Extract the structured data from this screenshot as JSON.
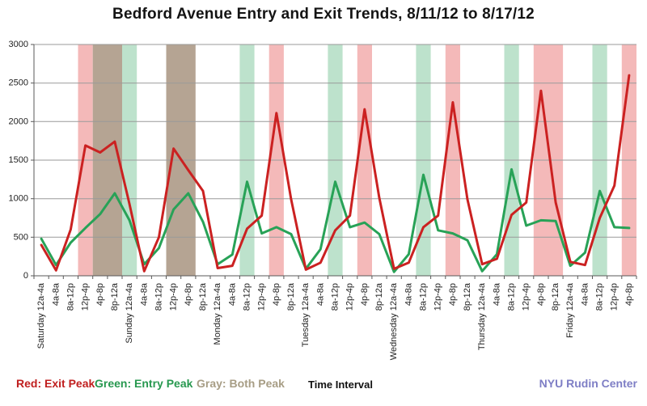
{
  "chart_data": {
    "type": "line",
    "title": "Bedford Avenue Entry and Exit Trends, 8/11/12 to 8/17/12",
    "xlabel": "Time Interval",
    "ylabel": "",
    "ylim": [
      0,
      3000
    ],
    "ytick_step": 500,
    "grid": true,
    "categories": [
      "Saturday 12a-4a",
      "4a-8a",
      "8a-12p",
      "12p-4p",
      "4p-8p",
      "8p-12a",
      "Sunday 12a-4a",
      "4a-8a",
      "8a-12p",
      "12p-4p",
      "4p-8p",
      "8p-12a",
      "Monday 12a-4a",
      "4a-8a",
      "8a-12p",
      "12p-4p",
      "4p-8p",
      "8p-12a",
      "Tuesday 12a-4a",
      "4a-8a",
      "8a-12p",
      "12p-4p",
      "4p-8p",
      "8p-12a",
      "Wednesday 12a-4a",
      "4a-8a",
      "8a-12p",
      "12p-4p",
      "4p-8p",
      "8p-12a",
      "Thursday 12a-4a",
      "4a-8a",
      "8a-12p",
      "12p-4p",
      "4p-8p",
      "8p-12a",
      "Friday 12a-4a",
      "4a-8a",
      "8a-12p",
      "12p-4p",
      "4p-8p"
    ],
    "series": [
      {
        "name": "Entry",
        "color_key": "entry_line",
        "values": [
          480,
          140,
          430,
          620,
          800,
          1070,
          720,
          150,
          360,
          860,
          1070,
          700,
          150,
          275,
          1220,
          550,
          630,
          540,
          90,
          345,
          1220,
          630,
          690,
          540,
          50,
          280,
          1310,
          590,
          550,
          460,
          60,
          280,
          1380,
          650,
          720,
          710,
          130,
          300,
          1100,
          630,
          620
        ]
      },
      {
        "name": "Exit",
        "color_key": "exit_line",
        "values": [
          400,
          70,
          600,
          1690,
          1600,
          1740,
          930,
          60,
          500,
          1650,
          1370,
          1100,
          100,
          130,
          610,
          780,
          2110,
          990,
          80,
          170,
          590,
          780,
          2160,
          1010,
          90,
          170,
          630,
          780,
          2250,
          990,
          150,
          220,
          790,
          950,
          2400,
          950,
          180,
          140,
          750,
          1170,
          2600
        ]
      }
    ],
    "peak_bands": [
      {
        "start": 3,
        "end": 3,
        "type": "exit"
      },
      {
        "start": 4,
        "end": 5,
        "type": "both"
      },
      {
        "start": 6,
        "end": 6,
        "type": "entry"
      },
      {
        "start": 9,
        "end": 10,
        "type": "both"
      },
      {
        "start": 14,
        "end": 14,
        "type": "entry"
      },
      {
        "start": 16,
        "end": 16,
        "type": "exit"
      },
      {
        "start": 20,
        "end": 20,
        "type": "entry"
      },
      {
        "start": 22,
        "end": 22,
        "type": "exit"
      },
      {
        "start": 26,
        "end": 26,
        "type": "entry"
      },
      {
        "start": 28,
        "end": 28,
        "type": "exit"
      },
      {
        "start": 32,
        "end": 32,
        "type": "entry"
      },
      {
        "start": 34,
        "end": 35,
        "type": "exit"
      },
      {
        "start": 38,
        "end": 38,
        "type": "entry"
      },
      {
        "start": 40,
        "end": 40,
        "type": "exit"
      }
    ],
    "legend": {
      "exit": "Red: Exit Peak",
      "entry": "Green: Entry Peak",
      "both": "Gray: Both Peak"
    },
    "legend_position": "bottom"
  },
  "credit": "NYU Rudin Center",
  "colors": {
    "exit_line": "#cb2121",
    "entry_line": "#28a257",
    "band_exit": "#f4b9b9",
    "band_entry": "#bde2cc",
    "band_both": "#b5a493",
    "gridline": "#9a9a9a",
    "axis": "#595959",
    "tick_text": "#1f1f1f",
    "legend_exit_text": "#c01f1f",
    "legend_entry_text": "#27984f",
    "legend_both_text": "#a79d85",
    "credit_text": "#7e7ec5"
  }
}
